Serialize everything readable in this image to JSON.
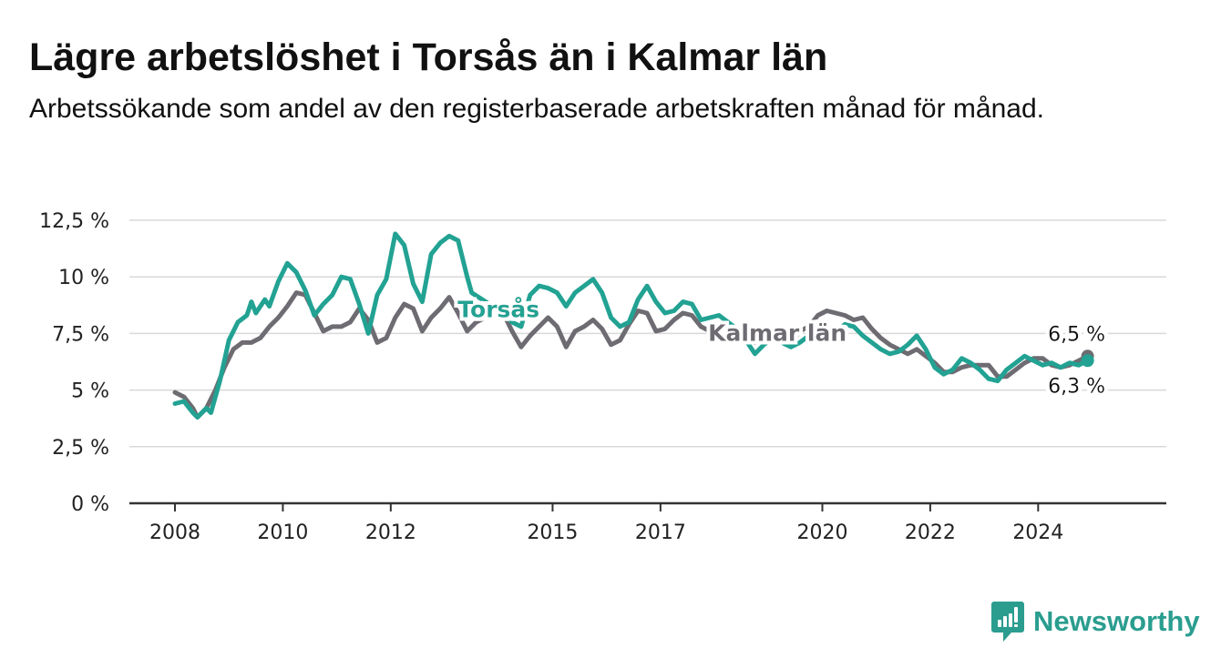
{
  "title": "Lägre arbetslöshet i Torsås än i Kalmar län",
  "subtitle": "Arbetssökande som andel av den registerbaserade arbetskraften månad för månad.",
  "brand": {
    "name": "Newsworthy",
    "color": "#2a9d8f"
  },
  "chart_data": {
    "type": "line",
    "x_start": "2008-01",
    "x_end": "2024-12",
    "x_ticks": [
      {
        "x": "2008-01",
        "label": "2008"
      },
      {
        "x": "2010-01",
        "label": "2010"
      },
      {
        "x": "2012-01",
        "label": "2012"
      },
      {
        "x": "2015-01",
        "label": "2015"
      },
      {
        "x": "2017-01",
        "label": "2017"
      },
      {
        "x": "2020-01",
        "label": "2020"
      },
      {
        "x": "2022-01",
        "label": "2022"
      },
      {
        "x": "2024-01",
        "label": "2024"
      }
    ],
    "y_ticks": [
      {
        "value": 0,
        "label": "0 %"
      },
      {
        "value": 2.5,
        "label": "2,5 %"
      },
      {
        "value": 5,
        "label": "5 %"
      },
      {
        "value": 7.5,
        "label": "7,5 %"
      },
      {
        "value": 10,
        "label": "10 %"
      },
      {
        "value": 12.5,
        "label": "12,5 %"
      }
    ],
    "ylim": [
      0,
      12.5
    ],
    "grid": true,
    "series": [
      {
        "name": "Kalmar län",
        "color": "#6e6c72",
        "end_label": "6,5 %",
        "points": [
          [
            "2008-01",
            4.9
          ],
          [
            "2008-03",
            4.7
          ],
          [
            "2008-05",
            4.2
          ],
          [
            "2008-06",
            3.8
          ],
          [
            "2008-08",
            4.2
          ],
          [
            "2008-10",
            5.0
          ],
          [
            "2008-12",
            6.0
          ],
          [
            "2009-02",
            6.8
          ],
          [
            "2009-04",
            7.1
          ],
          [
            "2009-06",
            7.1
          ],
          [
            "2009-08",
            7.3
          ],
          [
            "2009-10",
            7.8
          ],
          [
            "2009-12",
            8.2
          ],
          [
            "2010-02",
            8.7
          ],
          [
            "2010-04",
            9.3
          ],
          [
            "2010-06",
            9.2
          ],
          [
            "2010-08",
            8.4
          ],
          [
            "2010-10",
            7.6
          ],
          [
            "2010-12",
            7.8
          ],
          [
            "2011-02",
            7.8
          ],
          [
            "2011-04",
            8.0
          ],
          [
            "2011-06",
            8.6
          ],
          [
            "2011-08",
            8.1
          ],
          [
            "2011-10",
            7.1
          ],
          [
            "2011-12",
            7.3
          ],
          [
            "2012-02",
            8.2
          ],
          [
            "2012-04",
            8.8
          ],
          [
            "2012-06",
            8.6
          ],
          [
            "2012-08",
            7.6
          ],
          [
            "2012-10",
            8.2
          ],
          [
            "2012-12",
            8.6
          ],
          [
            "2013-02",
            9.1
          ],
          [
            "2013-04",
            8.4
          ],
          [
            "2013-06",
            7.6
          ],
          [
            "2013-08",
            8.0
          ],
          [
            "2013-10",
            8.2
          ],
          [
            "2013-12",
            8.5
          ],
          [
            "2014-02",
            8.4
          ],
          [
            "2014-04",
            7.6
          ],
          [
            "2014-06",
            6.9
          ],
          [
            "2014-08",
            7.4
          ],
          [
            "2014-10",
            7.8
          ],
          [
            "2014-12",
            8.2
          ],
          [
            "2015-02",
            7.8
          ],
          [
            "2015-04",
            6.9
          ],
          [
            "2015-06",
            7.6
          ],
          [
            "2015-08",
            7.8
          ],
          [
            "2015-10",
            8.1
          ],
          [
            "2015-12",
            7.7
          ],
          [
            "2016-02",
            7.0
          ],
          [
            "2016-04",
            7.2
          ],
          [
            "2016-06",
            7.9
          ],
          [
            "2016-08",
            8.5
          ],
          [
            "2016-10",
            8.4
          ],
          [
            "2016-12",
            7.6
          ],
          [
            "2017-02",
            7.7
          ],
          [
            "2017-04",
            8.1
          ],
          [
            "2017-06",
            8.4
          ],
          [
            "2017-08",
            8.3
          ],
          [
            "2017-10",
            7.8
          ],
          [
            "2017-12",
            7.6
          ],
          [
            "2018-02",
            7.9
          ],
          [
            "2018-04",
            8.0
          ],
          [
            "2018-06",
            7.6
          ],
          [
            "2018-08",
            7.3
          ],
          [
            "2018-10",
            7.1
          ],
          [
            "2018-12",
            7.3
          ],
          [
            "2019-02",
            7.5
          ],
          [
            "2019-04",
            7.3
          ],
          [
            "2019-06",
            7.1
          ],
          [
            "2019-08",
            7.6
          ],
          [
            "2019-10",
            7.8
          ],
          [
            "2019-12",
            8.3
          ],
          [
            "2020-02",
            8.5
          ],
          [
            "2020-04",
            8.4
          ],
          [
            "2020-06",
            8.3
          ],
          [
            "2020-08",
            8.1
          ],
          [
            "2020-10",
            8.2
          ],
          [
            "2020-12",
            7.7
          ],
          [
            "2021-02",
            7.3
          ],
          [
            "2021-04",
            7.0
          ],
          [
            "2021-06",
            6.8
          ],
          [
            "2021-08",
            6.6
          ],
          [
            "2021-10",
            6.8
          ],
          [
            "2021-12",
            6.5
          ],
          [
            "2022-02",
            6.2
          ],
          [
            "2022-04",
            5.8
          ],
          [
            "2022-06",
            5.8
          ],
          [
            "2022-08",
            6.0
          ],
          [
            "2022-10",
            6.1
          ],
          [
            "2022-12",
            6.1
          ],
          [
            "2023-02",
            6.1
          ],
          [
            "2023-04",
            5.6
          ],
          [
            "2023-06",
            5.6
          ],
          [
            "2023-08",
            5.9
          ],
          [
            "2023-10",
            6.2
          ],
          [
            "2023-12",
            6.4
          ],
          [
            "2024-02",
            6.4
          ],
          [
            "2024-04",
            6.1
          ],
          [
            "2024-06",
            6.0
          ],
          [
            "2024-08",
            6.1
          ],
          [
            "2024-10",
            6.3
          ],
          [
            "2024-12",
            6.5
          ]
        ]
      },
      {
        "name": "Torsås",
        "color": "#22a293",
        "end_label": "6,3 %",
        "points": [
          [
            "2008-01",
            4.4
          ],
          [
            "2008-03",
            4.5
          ],
          [
            "2008-05",
            4.0
          ],
          [
            "2008-06",
            3.8
          ],
          [
            "2008-08",
            4.2
          ],
          [
            "2008-09",
            4.0
          ],
          [
            "2008-11",
            5.4
          ],
          [
            "2009-01",
            7.2
          ],
          [
            "2009-03",
            8.0
          ],
          [
            "2009-05",
            8.3
          ],
          [
            "2009-06",
            8.9
          ],
          [
            "2009-07",
            8.4
          ],
          [
            "2009-09",
            9.0
          ],
          [
            "2009-10",
            8.7
          ],
          [
            "2009-12",
            9.8
          ],
          [
            "2010-02",
            10.6
          ],
          [
            "2010-04",
            10.2
          ],
          [
            "2010-06",
            9.4
          ],
          [
            "2010-08",
            8.3
          ],
          [
            "2010-10",
            8.8
          ],
          [
            "2010-12",
            9.2
          ],
          [
            "2011-02",
            10.0
          ],
          [
            "2011-04",
            9.9
          ],
          [
            "2011-06",
            8.8
          ],
          [
            "2011-08",
            7.5
          ],
          [
            "2011-10",
            9.2
          ],
          [
            "2011-12",
            9.9
          ],
          [
            "2012-02",
            11.9
          ],
          [
            "2012-04",
            11.4
          ],
          [
            "2012-06",
            9.7
          ],
          [
            "2012-08",
            8.9
          ],
          [
            "2012-10",
            11.0
          ],
          [
            "2012-12",
            11.5
          ],
          [
            "2013-02",
            11.8
          ],
          [
            "2013-04",
            11.6
          ],
          [
            "2013-06",
            10.0
          ],
          [
            "2013-07",
            9.3
          ],
          [
            "2014-02",
            8.4
          ],
          [
            "2014-04",
            8.0
          ],
          [
            "2014-06",
            7.8
          ],
          [
            "2014-08",
            9.2
          ],
          [
            "2014-10",
            9.6
          ],
          [
            "2014-12",
            9.5
          ],
          [
            "2015-02",
            9.3
          ],
          [
            "2015-04",
            8.7
          ],
          [
            "2015-06",
            9.3
          ],
          [
            "2015-08",
            9.6
          ],
          [
            "2015-10",
            9.9
          ],
          [
            "2015-12",
            9.3
          ],
          [
            "2016-02",
            8.2
          ],
          [
            "2016-04",
            7.8
          ],
          [
            "2016-06",
            8.0
          ],
          [
            "2016-08",
            9.0
          ],
          [
            "2016-10",
            9.6
          ],
          [
            "2016-12",
            8.9
          ],
          [
            "2017-02",
            8.4
          ],
          [
            "2017-04",
            8.5
          ],
          [
            "2017-06",
            8.9
          ],
          [
            "2017-08",
            8.8
          ],
          [
            "2017-10",
            8.1
          ],
          [
            "2018-02",
            8.3
          ],
          [
            "2018-04",
            8.0
          ],
          [
            "2018-06",
            7.7
          ],
          [
            "2018-08",
            7.2
          ],
          [
            "2018-10",
            6.6
          ],
          [
            "2018-12",
            7.0
          ],
          [
            "2019-02",
            7.3
          ],
          [
            "2019-04",
            7.1
          ],
          [
            "2019-06",
            6.9
          ],
          [
            "2019-08",
            7.1
          ],
          [
            "2019-10",
            7.4
          ],
          [
            "2019-12",
            7.6
          ],
          [
            "2020-02",
            7.3
          ],
          [
            "2020-04",
            7.5
          ],
          [
            "2020-06",
            7.9
          ],
          [
            "2020-08",
            7.8
          ],
          [
            "2020-10",
            7.4
          ],
          [
            "2020-12",
            7.1
          ],
          [
            "2021-02",
            6.8
          ],
          [
            "2021-04",
            6.6
          ],
          [
            "2021-06",
            6.7
          ],
          [
            "2021-08",
            7.0
          ],
          [
            "2021-10",
            7.4
          ],
          [
            "2021-12",
            6.8
          ],
          [
            "2022-02",
            6.0
          ],
          [
            "2022-04",
            5.7
          ],
          [
            "2022-06",
            5.9
          ],
          [
            "2022-08",
            6.4
          ],
          [
            "2022-10",
            6.2
          ],
          [
            "2022-12",
            5.9
          ],
          [
            "2023-02",
            5.5
          ],
          [
            "2023-04",
            5.4
          ],
          [
            "2023-06",
            5.9
          ],
          [
            "2023-08",
            6.2
          ],
          [
            "2023-10",
            6.5
          ],
          [
            "2023-12",
            6.3
          ],
          [
            "2024-02",
            6.1
          ],
          [
            "2024-04",
            6.2
          ],
          [
            "2024-06",
            6.0
          ],
          [
            "2024-08",
            6.2
          ],
          [
            "2024-10",
            6.1
          ],
          [
            "2024-12",
            6.3
          ]
        ]
      }
    ]
  }
}
